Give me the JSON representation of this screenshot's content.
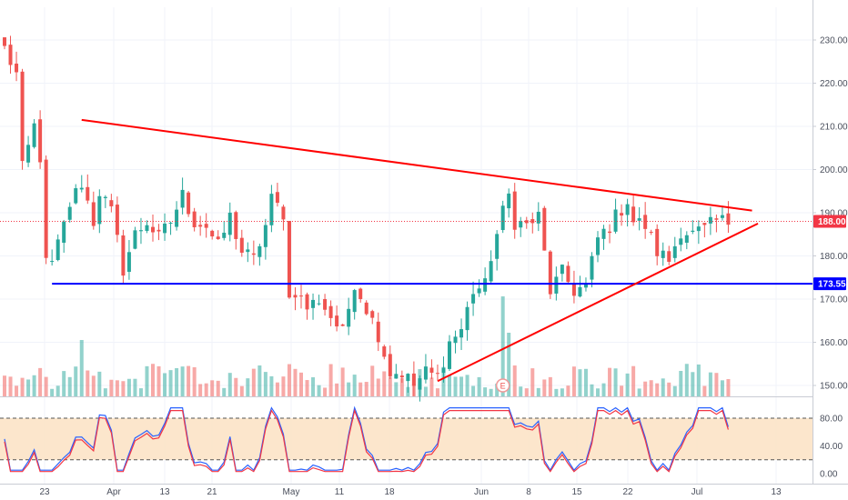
{
  "chart_data": {
    "type": "candlestick",
    "price_axis": {
      "ticks": [
        150,
        160,
        170,
        180,
        190,
        200,
        210,
        220,
        230
      ],
      "tick_labels": [
        "150.00",
        "160.00",
        "170.00",
        "180.00",
        "190.00",
        "200.00",
        "210.00",
        "220.00",
        "230.00"
      ],
      "range": [
        143,
        237
      ]
    },
    "time_axis": {
      "labels": [
        "23",
        "Apr",
        "13",
        "21",
        "May",
        "11",
        "18",
        "Jun",
        "8",
        "15",
        "22",
        "Jul",
        "13"
      ]
    },
    "last_price": {
      "value": 188.0,
      "label": "188.00",
      "color": "#f23645"
    },
    "support_level": {
      "value": 173.55,
      "label": "173.55",
      "color": "#0000ff"
    },
    "trendlines": [
      {
        "name": "upper",
        "color": "#ff0000",
        "from": {
          "session": 13,
          "price": 211.5
        },
        "to": {
          "session": 126,
          "price": 190.5
        }
      },
      {
        "name": "lower",
        "color": "#ff0000",
        "from": {
          "session": 73,
          "price": 151
        },
        "to": {
          "session": 127,
          "price": 187.5
        }
      }
    ],
    "support_start_session": 8,
    "event_marker": {
      "label": "E",
      "session": 84
    },
    "stochastic": {
      "ticks": [
        0,
        40,
        80
      ],
      "tick_labels": [
        "0.00",
        "40.00",
        "80.00"
      ],
      "overbought": 80,
      "oversold": 20,
      "range": [
        -10,
        100
      ]
    },
    "series_anchors": [
      [
        0,
        228
      ],
      [
        2,
        222
      ],
      [
        3,
        200
      ],
      [
        5,
        210
      ],
      [
        6,
        203
      ],
      [
        7,
        178
      ],
      [
        8,
        178
      ],
      [
        10,
        187
      ],
      [
        11,
        192
      ],
      [
        13,
        197
      ],
      [
        15,
        188
      ],
      [
        16,
        195
      ],
      [
        18,
        190
      ],
      [
        20,
        177
      ],
      [
        22,
        185
      ],
      [
        24,
        188
      ],
      [
        26,
        184
      ],
      [
        28,
        188
      ],
      [
        30,
        194
      ],
      [
        32,
        188
      ],
      [
        34,
        187
      ],
      [
        36,
        182
      ],
      [
        38,
        189
      ],
      [
        40,
        181
      ],
      [
        42,
        179
      ],
      [
        44,
        187
      ],
      [
        45,
        193
      ],
      [
        47,
        190
      ],
      [
        48,
        170
      ],
      [
        49,
        172
      ],
      [
        51,
        168
      ],
      [
        53,
        170
      ],
      [
        55,
        166
      ],
      [
        57,
        162
      ],
      [
        59,
        174
      ],
      [
        61,
        168
      ],
      [
        63,
        162
      ],
      [
        65,
        153
      ],
      [
        67,
        153
      ],
      [
        69,
        150
      ],
      [
        71,
        153
      ],
      [
        73,
        152
      ],
      [
        75,
        160
      ],
      [
        77,
        163
      ],
      [
        79,
        172
      ],
      [
        81,
        173
      ],
      [
        82,
        180
      ],
      [
        84,
        190
      ],
      [
        85,
        194
      ],
      [
        86,
        188
      ],
      [
        88,
        187
      ],
      [
        90,
        189
      ],
      [
        92,
        172
      ],
      [
        94,
        176
      ],
      [
        96,
        172
      ],
      [
        98,
        173
      ],
      [
        100,
        184
      ],
      [
        102,
        187
      ],
      [
        104,
        191
      ],
      [
        105,
        193
      ],
      [
        106,
        188
      ],
      [
        108,
        187
      ],
      [
        110,
        181
      ],
      [
        112,
        179
      ],
      [
        114,
        186
      ],
      [
        116,
        185
      ],
      [
        118,
        186
      ],
      [
        120,
        188
      ]
    ],
    "notes_ticks_volume": "volume bars share candle colors"
  }
}
